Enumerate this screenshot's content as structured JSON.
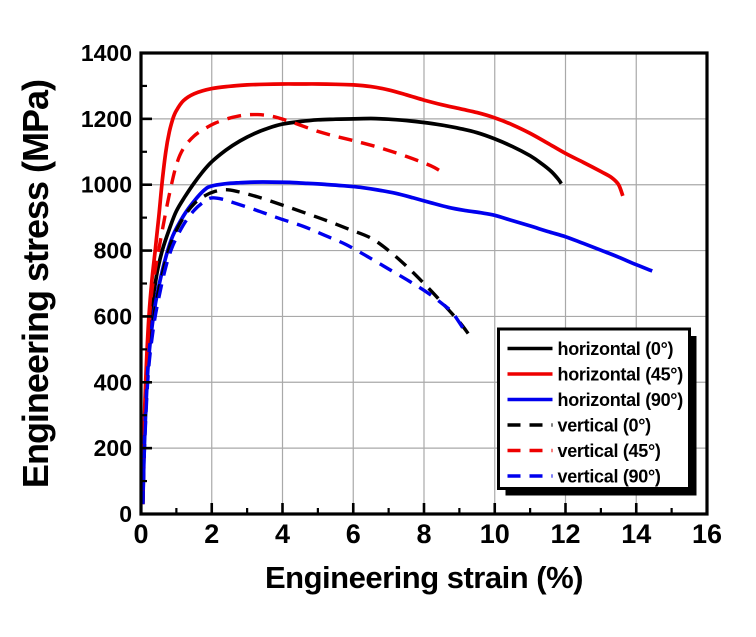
{
  "chart_data": {
    "type": "line",
    "title": "",
    "xlabel": "Engineering strain (%)",
    "ylabel": "Engineering stress (MPa)",
    "xlim": [
      0,
      16
    ],
    "ylim": [
      0,
      1400
    ],
    "x_ticks": [
      0,
      2,
      4,
      6,
      8,
      10,
      12,
      14,
      16
    ],
    "y_ticks": [
      0,
      200,
      400,
      600,
      800,
      1000,
      1200,
      1400
    ],
    "x_minor_ticks": [
      1,
      3,
      5,
      7,
      9,
      11,
      13,
      15
    ],
    "y_minor_ticks": [
      100,
      300,
      500,
      700,
      900,
      1100,
      1300
    ],
    "grid": true,
    "grid_color": "#a9a9a9",
    "frame_color": "#000000",
    "legend_position": "inside lower-right",
    "colors": {
      "black": "#000000",
      "red": "#ee0000",
      "blue": "#0000ee"
    },
    "series": [
      {
        "name": "horizontal (0°)",
        "color": "#000000",
        "line_style": "solid",
        "points": [
          [
            0.05,
            30
          ],
          [
            0.1,
            250
          ],
          [
            0.2,
            480
          ],
          [
            0.3,
            620
          ],
          [
            0.45,
            730
          ],
          [
            0.6,
            800
          ],
          [
            0.8,
            865
          ],
          [
            1.0,
            920
          ],
          [
            1.25,
            965
          ],
          [
            1.5,
            1005
          ],
          [
            1.75,
            1040
          ],
          [
            2.0,
            1070
          ],
          [
            2.4,
            1105
          ],
          [
            2.8,
            1133
          ],
          [
            3.2,
            1155
          ],
          [
            3.6,
            1172
          ],
          [
            4.0,
            1184
          ],
          [
            4.5,
            1192
          ],
          [
            5.0,
            1197
          ],
          [
            5.5,
            1199
          ],
          [
            6.0,
            1200
          ],
          [
            6.5,
            1201
          ],
          [
            7.0,
            1199
          ],
          [
            7.5,
            1195
          ],
          [
            8.0,
            1189
          ],
          [
            8.5,
            1181
          ],
          [
            9.0,
            1171
          ],
          [
            9.5,
            1158
          ],
          [
            10.0,
            1139
          ],
          [
            10.5,
            1116
          ],
          [
            11.0,
            1088
          ],
          [
            11.3,
            1066
          ],
          [
            11.6,
            1040
          ],
          [
            11.8,
            1016
          ],
          [
            11.88,
            1003
          ]
        ]
      },
      {
        "name": "horizontal (45°)",
        "color": "#ee0000",
        "line_style": "solid",
        "points": [
          [
            0.05,
            30
          ],
          [
            0.1,
            300
          ],
          [
            0.2,
            560
          ],
          [
            0.3,
            700
          ],
          [
            0.4,
            800
          ],
          [
            0.5,
            900
          ],
          [
            0.6,
            1010
          ],
          [
            0.7,
            1100
          ],
          [
            0.8,
            1160
          ],
          [
            0.9,
            1200
          ],
          [
            1.0,
            1225
          ],
          [
            1.2,
            1255
          ],
          [
            1.5,
            1276
          ],
          [
            2.0,
            1292
          ],
          [
            2.5,
            1299
          ],
          [
            3.0,
            1303
          ],
          [
            3.5,
            1305
          ],
          [
            4.0,
            1306
          ],
          [
            4.5,
            1306
          ],
          [
            5.0,
            1306
          ],
          [
            5.5,
            1305
          ],
          [
            6.0,
            1303
          ],
          [
            6.5,
            1298
          ],
          [
            7.0,
            1288
          ],
          [
            7.5,
            1273
          ],
          [
            8.0,
            1257
          ],
          [
            8.5,
            1243
          ],
          [
            9.0,
            1231
          ],
          [
            9.5,
            1219
          ],
          [
            10.0,
            1203
          ],
          [
            10.5,
            1182
          ],
          [
            11.0,
            1156
          ],
          [
            11.5,
            1126
          ],
          [
            12.0,
            1095
          ],
          [
            12.5,
            1068
          ],
          [
            13.0,
            1040
          ],
          [
            13.3,
            1022
          ],
          [
            13.5,
            1000
          ],
          [
            13.62,
            966
          ]
        ]
      },
      {
        "name": "horizontal (90°)",
        "color": "#0000ee",
        "line_style": "solid",
        "points": [
          [
            0.05,
            30
          ],
          [
            0.1,
            220
          ],
          [
            0.2,
            450
          ],
          [
            0.35,
            600
          ],
          [
            0.5,
            690
          ],
          [
            0.7,
            780
          ],
          [
            0.9,
            845
          ],
          [
            1.2,
            905
          ],
          [
            1.5,
            950
          ],
          [
            1.8,
            985
          ],
          [
            2.0,
            996
          ],
          [
            2.4,
            1003
          ],
          [
            2.8,
            1006
          ],
          [
            3.2,
            1008
          ],
          [
            3.7,
            1008
          ],
          [
            4.2,
            1007
          ],
          [
            4.7,
            1004
          ],
          [
            5.2,
            1001
          ],
          [
            5.7,
            997
          ],
          [
            6.2,
            992
          ],
          [
            6.7,
            984
          ],
          [
            7.2,
            974
          ],
          [
            7.7,
            960
          ],
          [
            8.2,
            945
          ],
          [
            8.7,
            931
          ],
          [
            9.2,
            921
          ],
          [
            9.6,
            915
          ],
          [
            10.0,
            907
          ],
          [
            10.5,
            891
          ],
          [
            11.0,
            875
          ],
          [
            11.5,
            858
          ],
          [
            12.0,
            842
          ],
          [
            12.5,
            822
          ],
          [
            13.0,
            801
          ],
          [
            13.5,
            780
          ],
          [
            14.0,
            757
          ],
          [
            14.45,
            738
          ]
        ]
      },
      {
        "name": "vertical (0°)",
        "color": "#000000",
        "line_style": "dashed",
        "points": [
          [
            0.05,
            30
          ],
          [
            0.1,
            220
          ],
          [
            0.2,
            440
          ],
          [
            0.35,
            590
          ],
          [
            0.5,
            680
          ],
          [
            0.7,
            770
          ],
          [
            0.9,
            838
          ],
          [
            1.2,
            900
          ],
          [
            1.5,
            942
          ],
          [
            1.8,
            966
          ],
          [
            2.1,
            980
          ],
          [
            2.4,
            985
          ],
          [
            2.7,
            980
          ],
          [
            3.3,
            963
          ],
          [
            4.0,
            938
          ],
          [
            4.7,
            912
          ],
          [
            5.3,
            889
          ],
          [
            5.9,
            864
          ],
          [
            6.5,
            838
          ],
          [
            7.0,
            800
          ],
          [
            7.5,
            753
          ],
          [
            8.0,
            700
          ],
          [
            8.5,
            643
          ],
          [
            9.0,
            583
          ],
          [
            9.25,
            548
          ]
        ]
      },
      {
        "name": "vertical (45°)",
        "color": "#ee0000",
        "line_style": "dashed",
        "points": [
          [
            0.05,
            30
          ],
          [
            0.1,
            280
          ],
          [
            0.2,
            530
          ],
          [
            0.3,
            670
          ],
          [
            0.45,
            770
          ],
          [
            0.6,
            860
          ],
          [
            0.8,
            970
          ],
          [
            1.0,
            1060
          ],
          [
            1.2,
            1110
          ],
          [
            1.5,
            1148
          ],
          [
            1.8,
            1170
          ],
          [
            2.1,
            1187
          ],
          [
            2.5,
            1202
          ],
          [
            2.9,
            1211
          ],
          [
            3.3,
            1213
          ],
          [
            3.7,
            1208
          ],
          [
            4.1,
            1196
          ],
          [
            4.5,
            1181
          ],
          [
            5.0,
            1162
          ],
          [
            5.5,
            1147
          ],
          [
            6.0,
            1134
          ],
          [
            6.5,
            1120
          ],
          [
            7.0,
            1104
          ],
          [
            7.5,
            1086
          ],
          [
            8.0,
            1066
          ],
          [
            8.3,
            1052
          ],
          [
            8.6,
            1032
          ]
        ]
      },
      {
        "name": "vertical (90°)",
        "color": "#0000ee",
        "line_style": "dashed",
        "points": [
          [
            0.05,
            30
          ],
          [
            0.1,
            200
          ],
          [
            0.2,
            420
          ],
          [
            0.35,
            565
          ],
          [
            0.5,
            655
          ],
          [
            0.7,
            750
          ],
          [
            0.9,
            815
          ],
          [
            1.2,
            878
          ],
          [
            1.5,
            922
          ],
          [
            1.8,
            950
          ],
          [
            2.0,
            960
          ],
          [
            2.3,
            956
          ],
          [
            2.6,
            946
          ],
          [
            3.25,
            923
          ],
          [
            3.9,
            898
          ],
          [
            4.6,
            873
          ],
          [
            5.2,
            846
          ],
          [
            5.8,
            818
          ],
          [
            6.4,
            782
          ],
          [
            7.0,
            744
          ],
          [
            7.6,
            706
          ],
          [
            8.1,
            672
          ],
          [
            8.5,
            640
          ],
          [
            8.8,
            612
          ],
          [
            9.1,
            565
          ]
        ]
      }
    ]
  }
}
